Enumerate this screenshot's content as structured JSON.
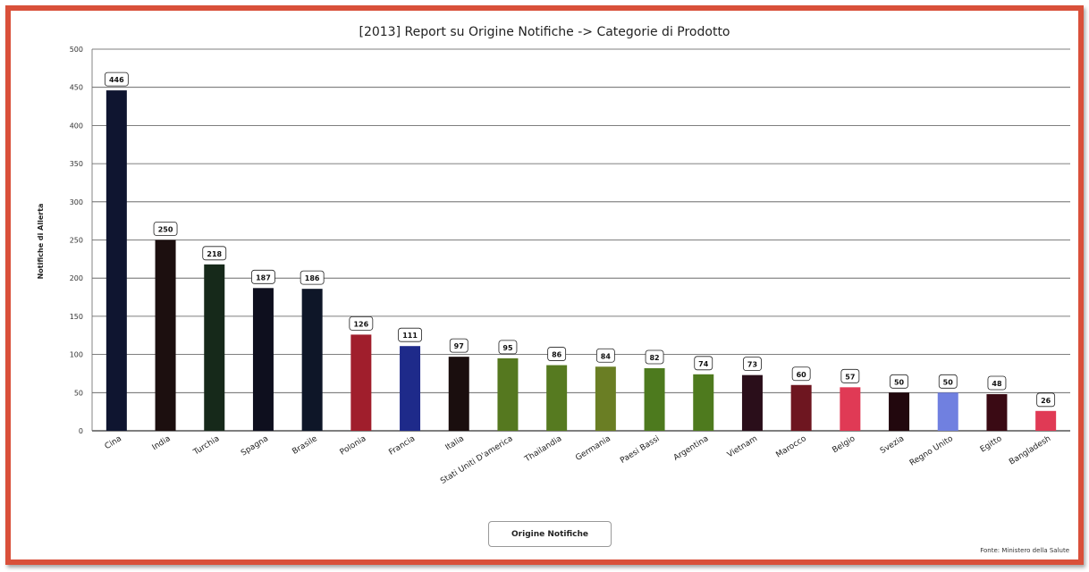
{
  "chart_data": {
    "type": "bar",
    "title": "[2013] Report su Origine Notifiche -> Categorie di Prodotto",
    "ylabel": "Notifiche di Allerta",
    "xlabel": "",
    "ylim": [
      0,
      500
    ],
    "yticks": [
      0,
      50,
      100,
      150,
      200,
      250,
      300,
      350,
      400,
      450,
      500
    ],
    "grid": true,
    "legend": "bottom-center",
    "categories": [
      "Cina",
      "India",
      "Turchia",
      "Spagna",
      "Brasile",
      "Polonia",
      "Francia",
      "Italia",
      "Stati Uniti D'america",
      "Thailandia",
      "Germania",
      "Paesi Bassi",
      "Argentina",
      "Vietnam",
      "Marocco",
      "Belgio",
      "Svezia",
      "Regno Unito",
      "Egitto",
      "Bangladesh"
    ],
    "series": [
      {
        "name": "Origine Notifiche",
        "values": [
          446,
          250,
          218,
          187,
          186,
          126,
          111,
          97,
          95,
          86,
          84,
          82,
          74,
          73,
          60,
          57,
          50,
          50,
          48,
          26
        ],
        "colors": [
          "#0f1530",
          "#1c0f0f",
          "#16291a",
          "#0e0f1e",
          "#0e1628",
          "#a01e2c",
          "#1e2a8a",
          "#1a0e0e",
          "#55781f",
          "#567a20",
          "#6a7e24",
          "#4d7a1e",
          "#4e7a1e",
          "#2a0e1a",
          "#6e1620",
          "#e03a55",
          "#22080e",
          "#7080e0",
          "#3a0a14",
          "#e03a55"
        ]
      }
    ]
  },
  "footer": {
    "legend_label": "Origine Notifiche",
    "source": "Fonte: Ministero della Salute"
  }
}
